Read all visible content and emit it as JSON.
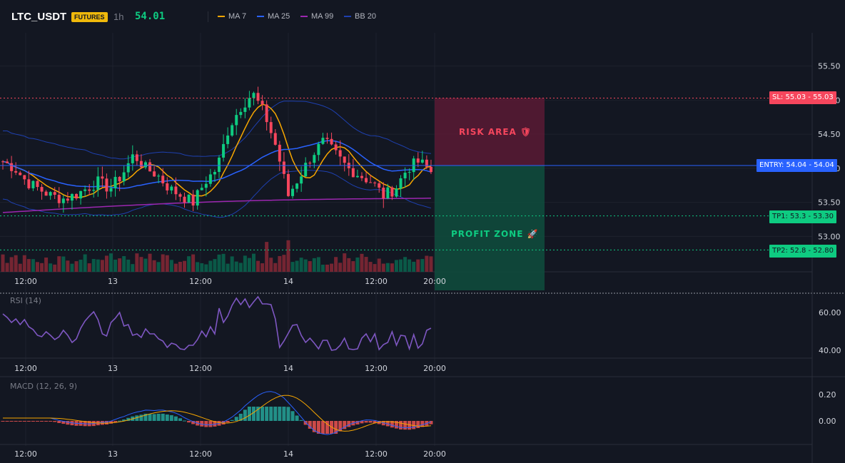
{
  "header": {
    "symbol": "LTC_USDT",
    "badge": "FUTURES",
    "interval": "1h",
    "last_price": "54.01",
    "legend": [
      {
        "label": "MA 7",
        "color": "#f7a600"
      },
      {
        "label": "MA 25",
        "color": "#2962ff"
      },
      {
        "label": "MA 99",
        "color": "#9c27b0"
      },
      {
        "label": "BB 20",
        "color": "#1e40af"
      }
    ]
  },
  "price_axis": [
    "55.50",
    "55.00",
    "54.50",
    "54.00",
    "53.50",
    "53.00"
  ],
  "time_axis": [
    "12:00",
    "13",
    "12:00",
    "14",
    "12:00",
    "20:00"
  ],
  "levels": {
    "sl": {
      "tag": "SL: 55.03",
      "value": "55.03",
      "color": "#f6465d"
    },
    "entry": {
      "tag": "ENTRY: 54.04",
      "value": "54.04",
      "color": "#2962ff"
    },
    "tp1": {
      "tag": "TP1: 53.3",
      "value": "53.30",
      "color": "#0ecb81"
    },
    "tp2": {
      "tag": "TP2: 52.8",
      "value": "52.80",
      "color": "#0ecb81"
    }
  },
  "zones": {
    "risk": "RISK AREA 🛡",
    "profit": "PROFIT ZONE 🚀"
  },
  "rsi": {
    "title": "RSI (14)",
    "axis": [
      "60.00",
      "40.00"
    ]
  },
  "macd": {
    "title": "MACD (12, 26, 9)",
    "axis": [
      "0.20",
      "0.00"
    ]
  },
  "colors": {
    "up": "#0ecb81",
    "down": "#f6465d",
    "bg": "#131722",
    "grid": "#1e222d"
  }
}
